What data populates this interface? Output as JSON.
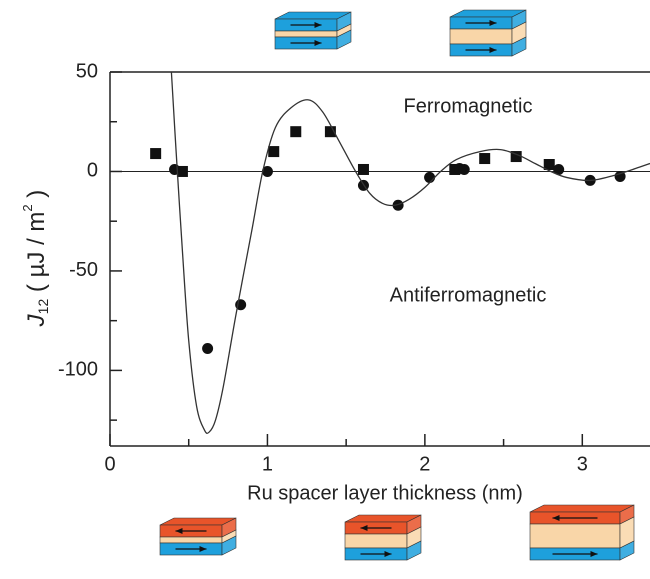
{
  "chart_data": {
    "type": "scatter",
    "xlabel": "Ru spacer layer thickness (nm)",
    "ylabel_parts": [
      "J",
      "12",
      " ( µJ / m",
      "2",
      " )"
    ],
    "annotations": [
      "Ferromagnetic",
      "Antiferromagnetic"
    ],
    "xlim": [
      0,
      3.43
    ],
    "ylim": [
      -138,
      50
    ],
    "xticks": [
      0,
      1,
      2,
      3
    ],
    "yticks": [
      -100,
      -50,
      0,
      50
    ],
    "xminorticks": [
      0.5,
      1.5,
      2.5
    ],
    "yminorticks": [
      -125,
      -75,
      -25,
      25
    ],
    "series": [
      {
        "marker": "square",
        "color": "#111111",
        "x": [
          0.29,
          0.46,
          1.04,
          1.18,
          1.4,
          1.61,
          2.19,
          2.38,
          2.58,
          2.79
        ],
        "values": [
          9,
          0,
          10,
          20,
          20,
          1,
          1,
          6.5,
          7.5,
          3.5
        ]
      },
      {
        "marker": "circle",
        "color": "#111111",
        "x": [
          0.41,
          0.62,
          0.83,
          1.0,
          1.61,
          1.83,
          2.03,
          2.22,
          2.25,
          2.85,
          3.05,
          3.24
        ],
        "values": [
          1,
          -89,
          -67,
          0,
          -7,
          -17,
          -3,
          1.5,
          1,
          1,
          -4.5,
          -2.5
        ]
      },
      {
        "marker": "line",
        "color": "#333333",
        "x": [
          0.39,
          0.42,
          0.46,
          0.5,
          0.55,
          0.6,
          0.63,
          0.67,
          0.72,
          0.8,
          0.9,
          0.97,
          1.05,
          1.15,
          1.26,
          1.35,
          1.45,
          1.56,
          1.65,
          1.73,
          1.81,
          1.9,
          2.0,
          2.1,
          2.2,
          2.35,
          2.48,
          2.6,
          2.7,
          2.8,
          2.9,
          3.05,
          3.2,
          3.32,
          3.43
        ],
        "values": [
          50,
          10,
          -40,
          -85,
          -118,
          -130,
          -131,
          -125,
          -108,
          -72,
          -30,
          0,
          22,
          32,
          36,
          30,
          16,
          0,
          -11,
          -16,
          -17,
          -14,
          -8,
          0,
          6,
          10,
          11,
          8,
          4,
          0,
          -3,
          -4.5,
          -2,
          1,
          4
        ]
      }
    ]
  }
}
